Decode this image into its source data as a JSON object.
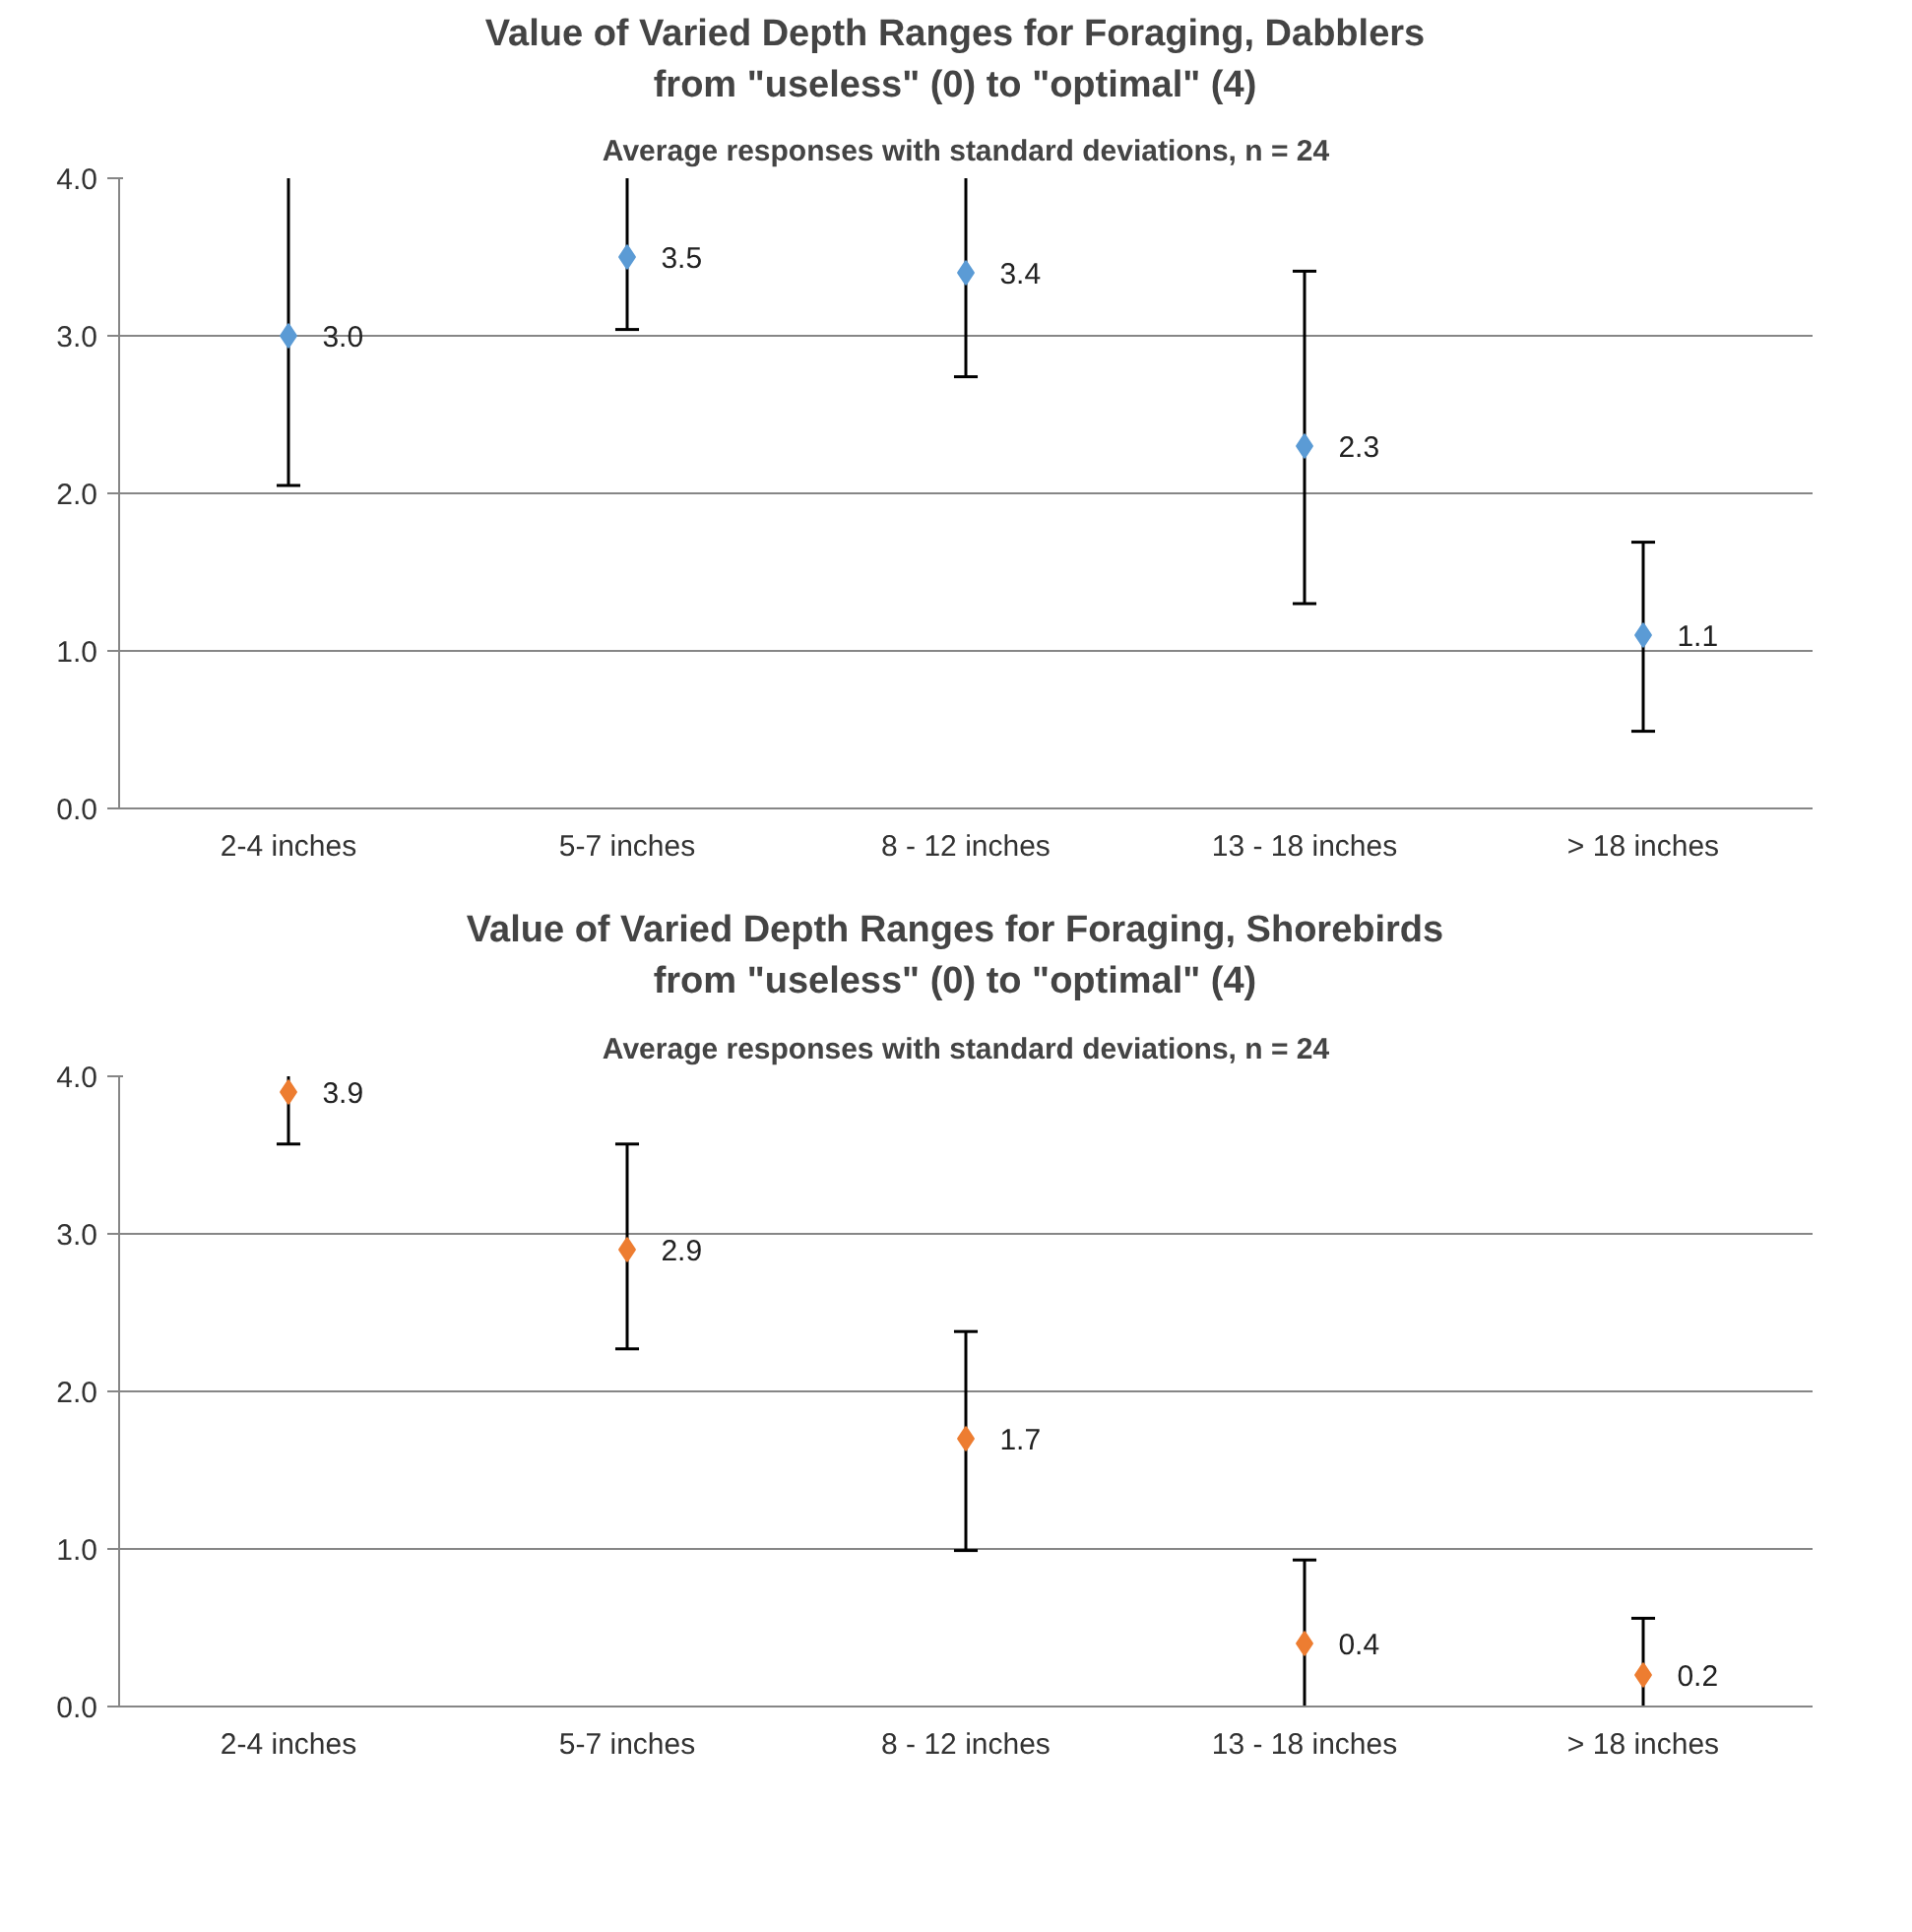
{
  "chart_data": [
    {
      "type": "scatter",
      "title": "Value of Varied Depth Ranges for Foraging, Dabblers\nfrom \"useless\" (0) to \"optimal\" (4)",
      "subtitle": "Average responses with standard deviations, n = 24",
      "categories": [
        "2-4 inches",
        "5-7 inches",
        "8 - 12 inches",
        "13 - 18 inches",
        "> 18 inches"
      ],
      "series": [
        {
          "color": "#5b9bd5",
          "values": [
            3.0,
            3.5,
            3.4,
            2.3,
            1.1
          ],
          "errors": [
            [
              2.05,
              4.0
            ],
            [
              3.04,
              4.0
            ],
            [
              2.74,
              4.0
            ],
            [
              1.3,
              3.41
            ],
            [
              0.49,
              1.69
            ]
          ],
          "value_labels": [
            "3.0",
            "3.5",
            "3.4",
            "2.3",
            "1.1"
          ]
        }
      ],
      "ylim": [
        0,
        4
      ],
      "yticks": [
        {
          "value": 0,
          "label": "0.0"
        },
        {
          "value": 1,
          "label": "1.0"
        },
        {
          "value": 2,
          "label": "2.0"
        },
        {
          "value": 3,
          "label": "3.0"
        },
        {
          "value": 4,
          "label": "4.0"
        }
      ],
      "grid": "y",
      "marker": "diamond"
    },
    {
      "type": "scatter",
      "title": "Value of Varied Depth Ranges for Foraging, Shorebirds\nfrom \"useless\" (0) to \"optimal\" (4)",
      "subtitle": "Average responses with standard deviations, n = 24",
      "categories": [
        "2-4 inches",
        "5-7 inches",
        "8 - 12 inches",
        "13 - 18 inches",
        "> 18 inches"
      ],
      "series": [
        {
          "color": "#ed7d31",
          "values": [
            3.9,
            2.9,
            1.7,
            0.4,
            0.2
          ],
          "errors": [
            [
              3.57,
              4.0
            ],
            [
              2.27,
              3.57
            ],
            [
              0.99,
              2.38
            ],
            [
              0,
              0.93
            ],
            [
              0,
              0.56
            ]
          ],
          "value_labels": [
            "3.9",
            "2.9",
            "1.7",
            "0.4",
            "0.2"
          ]
        }
      ],
      "ylim": [
        0,
        4
      ],
      "yticks": [
        {
          "value": 0,
          "label": "0.0"
        },
        {
          "value": 1,
          "label": "1.0"
        },
        {
          "value": 2,
          "label": "2.0"
        },
        {
          "value": 3,
          "label": "3.0"
        },
        {
          "value": 4,
          "label": "4.0"
        }
      ],
      "grid": "y",
      "marker": "diamond"
    }
  ]
}
